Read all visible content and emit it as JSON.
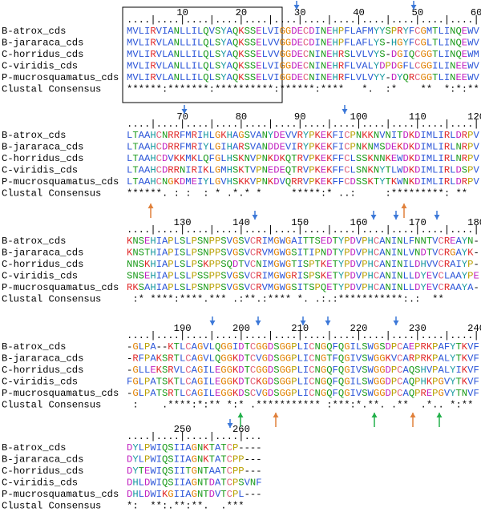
{
  "blocks": [
    {
      "ruler_numbers": [
        10,
        20,
        30,
        40,
        50,
        60
      ],
      "ruler": "....|....|....|....|....|....|....|....|....|....|....|....|",
      "rows": [
        {
          "name": "B-atrox_cds",
          "sequence": "MVLIRVIANLLILQVSYAQKSSELVIGGDECDINEHPFLAFMYYSPRYFCGMTLINQEWV"
        },
        {
          "name": "B-jararaca_cds",
          "sequence": "MVLIRVLANLLILQLSYAQKSSELVVGGDECDINEHPFLAFLYS-HGYFCGLTLINQEWV"
        },
        {
          "name": "C-horridus_cds",
          "sequence": "MVLIRVLANLLILQLSYAQKSSELVVGGDECNINEHRSLVLVYS-DGIQCGGTLINQEWM"
        },
        {
          "name": "C-viridis_cds",
          "sequence": "MVLIRVLANLLILQLSYAQKSSELVIGGDECNINEHRFLVALYDPDGFLCGGILINEEWV"
        },
        {
          "name": "P-mucrosquamatus_cds",
          "sequence": "MVLIRVLANLLILQLSYAQKSSELVIGGDECNINEHRFLVLVYY-DYQRCGGTLINEEWV"
        }
      ],
      "consensus_label": "Clustal Consensus",
      "consensus": "******:*******:**********:******:****   *.  :*    **  *:*:**"
    },
    {
      "ruler_numbers": [
        70,
        80,
        90,
        100,
        110,
        120
      ],
      "ruler": "....|....|....|....|....|....|....|....|....|....|....|....|",
      "rows": [
        {
          "name": "B-atrox_cds",
          "sequence": "LTAAHCNRRFMRIHLGKHAGSVANYDEVVRYPKEKFICPNKKNVNITDKDIMLIRLDRPV"
        },
        {
          "name": "B-jararaca_cds",
          "sequence": "LTAAHCDRRFMRIYLGIHARSVANDDEVIRYPKEKFICPNKNMSDEKDKDIMLIRLNRPV"
        },
        {
          "name": "C-horridus_cds",
          "sequence": "LTAAHCDVKKMKLQFGLHSKNVPNKDKQTRVPKEKFFCLSSKNNKEWDKDIMLIRLNRPV"
        },
        {
          "name": "C-viridis_cds",
          "sequence": "LTAAHCDRRNIRIKLGMHSKTVPNEDEQTRVPKEKFFCLSNKNYTLWDKDIMLIRLDSPV"
        },
        {
          "name": "P-mucrosquamatus_cds",
          "sequence": "LTAAHCNGKDMEIYLGVHSKKVPNKDVQRRVPKEKFFCDSSKTYTKWNKDIMLIRLDRPV"
        }
      ],
      "consensus_label": "Clustal Consensus",
      "consensus": "******. : :  : * .*.* *     *****:* ..:     :*********: **"
    },
    {
      "ruler_numbers": [
        130,
        140,
        150,
        160,
        170,
        180
      ],
      "ruler": "....|....|....|....|....|....|....|....|....|....|....|....|",
      "rows": [
        {
          "name": "B-atrox_cds",
          "sequence": "KNSEHIAPLSLPSNPPSVGSVCRIMGWGAITTSEDTYPDVPHCANINLFNNTVCREAYN-"
        },
        {
          "name": "B-jararaca_cds",
          "sequence": "KNSTHIAPISLPSNPPSVGSVCRVMGWGSITIPNDTYPDVPHCANINLVNDTVCRGAYK-"
        },
        {
          "name": "C-horridus_cds",
          "sequence": "NNSKHIAPLSLPSKPPSQDTVCNIMGWGTISPTKETYPDVPHCANINILDHVVCRAIYP-"
        },
        {
          "name": "C-viridis_cds",
          "sequence": "SNSEHIAPLSLPSSPPSVGSVCRIMGWGRISPSKETYPDVPHCANINLLDYEVCLAAYPE"
        },
        {
          "name": "P-mucrosquamatus_cds",
          "sequence": "RKSAHIAPLSLPSNPPSVGSVCRVMGWGSITSPQETYPDVPHCANINLLDYEVCRAAYA-"
        }
      ],
      "consensus_label": "Clustal Consensus",
      "consensus": " :* ****:****.*** .:**.:**** *. .:.:***********:.:  **"
    },
    {
      "ruler_numbers": [
        190,
        200,
        210,
        220,
        230,
        240
      ],
      "ruler": "....|....|....|....|....|....|....|....|....|....|....|....|",
      "rows": [
        {
          "name": "B-atrox_cds",
          "sequence": "-GLPA--KTLCAGVLQGGIDTCGGDSGGPLICNGQFQGILSWGSDPCAEPRKPAFYTKVF"
        },
        {
          "name": "B-jararaca_cds",
          "sequence": "-RFPAKSRTLCAGVLQGGKDTCVGDSGGPLICNGTFQGIVSWGGKVCARPRKPALYTKVF"
        },
        {
          "name": "C-horridus_cds",
          "sequence": "-GLLEKSRVLCAGILEGGKDTCGGDSGGPLICNGQFQGIVSWGGDPCAQSHVPALYIKVF"
        },
        {
          "name": "C-viridis_cds",
          "sequence": "FGLPATSKTLCAGILEGGKDTCKGDSGGPLICNGQFQGILSWGGDPCAQPHKPGVYTKVF"
        },
        {
          "name": "P-mucrosquamatus_cds",
          "sequence": "-GLPATSRTLCAGILEGGKDSCVGDSGGPLICNGQFQGIVSWGGDPCAQPREPGVYTNVF"
        }
      ],
      "consensus_label": "Clustal Consensus",
      "consensus": " :    .****:*:** *:* .*********** :***:*.**. .**  .*.. *:**"
    },
    {
      "ruler_numbers": [
        250,
        260
      ],
      "ruler": "....|....|....|....|...",
      "rows": [
        {
          "name": "B-atrox_cds",
          "sequence": "DYLPWIQSIIAGNKTATCP----"
        },
        {
          "name": "B-jararaca_cds",
          "sequence": "DYLPWIQSIIAGNKTATCPP---"
        },
        {
          "name": "C-horridus_cds",
          "sequence": "DYTEWIQSIITGNTAATCPP---"
        },
        {
          "name": "C-viridis_cds",
          "sequence": "DHLDWIQSIIAGNTDATCPSVNF"
        },
        {
          "name": "P-mucrosquamatus_cds",
          "sequence": "DHLDWIKGIIAGNTDVTCPL---"
        }
      ],
      "consensus_label": "Clustal Consensus",
      "consensus": "*:  **:.**:**.  .***"
    }
  ]
}
